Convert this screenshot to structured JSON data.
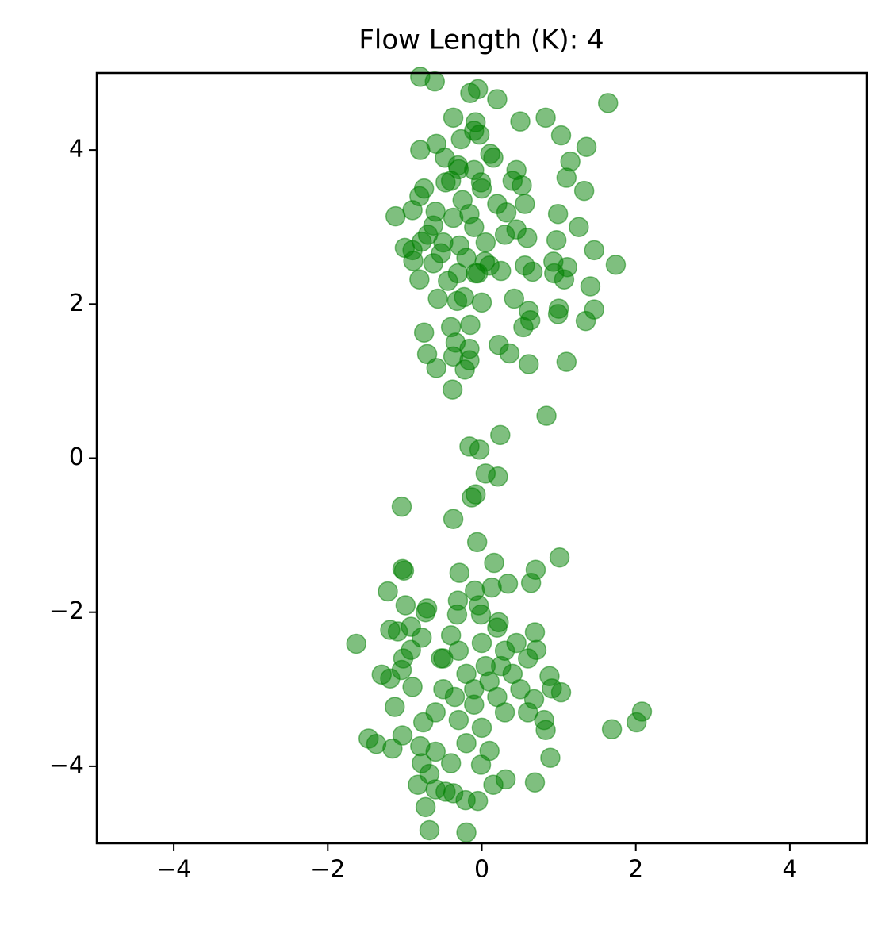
{
  "chart_data": {
    "type": "scatter",
    "title": "Flow Length (K): 4",
    "color": "#008000",
    "alpha": 0.5,
    "xlim": [
      -5,
      5
    ],
    "ylim": [
      -5,
      5
    ],
    "xticks": [
      {
        "value": -4,
        "label": "−4"
      },
      {
        "value": -2,
        "label": "−2"
      },
      0,
      2,
      4
    ],
    "yticks": [
      {
        "value": -4,
        "label": "−4"
      },
      {
        "value": -2,
        "label": "−2"
      },
      0,
      2,
      4
    ],
    "grid": false,
    "x": [
      -0.8,
      -0.61,
      -0.05,
      -0.15,
      0.2,
      1.64,
      -0.37,
      0.5,
      0.83,
      -0.08,
      -0.1,
      -0.03,
      1.03,
      -0.59,
      -0.8,
      1.36,
      -0.27,
      0.11,
      -0.48,
      1.15,
      0.45,
      -0.31,
      1.1,
      -0.1,
      -0.75,
      0.52,
      1.33,
      -0.01,
      -0.47,
      -0.81,
      0.56,
      -0.9,
      -1.12,
      0.99,
      1.26,
      -0.37,
      -0.16,
      0.32,
      -0.63,
      0.45,
      0.59,
      -1.0,
      -0.78,
      -0.53,
      -0.29,
      0.97,
      1.46,
      1.74,
      0.04,
      0.56,
      0.93,
      1.11,
      0.66,
      -0.89,
      -0.63,
      -0.08,
      0.25,
      0.94,
      1.07,
      -0.81,
      -0.44,
      -0.31,
      1.41,
      -0.57,
      -0.32,
      0.0,
      0.42,
      -0.23,
      0.61,
      1.0,
      0.99,
      1.46,
      1.35,
      0.63,
      0.54,
      -0.4,
      -0.15,
      -0.75,
      0.22,
      -0.34,
      -0.16,
      -0.37,
      -0.71,
      0.36,
      -0.16,
      1.1,
      -0.59,
      -0.22,
      0.61,
      -0.38,
      0.84,
      -0.3,
      -0.7,
      -0.5,
      -0.2,
      0.1,
      -0.4,
      0.0,
      0.2,
      -0.6,
      -0.1,
      0.3,
      -0.9,
      0.15,
      -0.25,
      0.4,
      -0.05,
      0.05,
      -0.16,
      -0.03,
      0.24,
      0.05,
      0.21,
      -0.08,
      -0.13,
      -1.04,
      -0.37,
      -0.06,
      1.01,
      0.16,
      -1.03,
      -1.01,
      0.7,
      -0.29,
      0.34,
      0.64,
      0.13,
      -1.22,
      -0.09,
      -0.31,
      -0.04,
      -0.99,
      -0.73,
      -0.71,
      -0.32,
      -0.01,
      0.22,
      -0.92,
      -1.19,
      -1.63,
      -1.09,
      0.69,
      -0.78,
      -1.02,
      -0.92,
      -0.53,
      0.71,
      -1.3,
      -1.19,
      -1.04,
      -0.9,
      0.88,
      0.91,
      1.03,
      -1.13,
      0.68,
      0.6,
      0.81,
      0.83,
      2.01,
      2.08,
      1.69,
      -1.03,
      -1.47,
      -1.37,
      -1.16,
      -0.76,
      -0.8,
      -0.6,
      0.89,
      -0.78,
      -0.4,
      -0.68,
      -0.01,
      -0.83,
      -0.6,
      -0.47,
      -0.37,
      -0.21,
      -0.05,
      0.15,
      0.31,
      0.69,
      -0.73,
      -0.68,
      -0.2,
      -0.3,
      0.0,
      0.3,
      -0.2,
      0.1,
      0.4,
      -0.5,
      -0.1,
      0.2,
      0.5,
      -0.3,
      0.0,
      0.3,
      -0.5,
      0.6,
      -0.2,
      0.1,
      -0.4,
      0.2,
      0.45,
      -0.6,
      0.05,
      -0.1,
      0.25,
      -0.35
    ],
    "values": [
      4.95,
      4.89,
      4.79,
      4.74,
      4.66,
      4.61,
      4.42,
      4.37,
      4.42,
      4.36,
      4.25,
      4.2,
      4.19,
      4.08,
      4.0,
      4.04,
      4.14,
      3.95,
      3.9,
      3.85,
      3.74,
      3.8,
      3.64,
      3.74,
      3.5,
      3.54,
      3.47,
      3.58,
      3.58,
      3.4,
      3.3,
      3.22,
      3.14,
      3.17,
      3.0,
      3.12,
      3.17,
      3.19,
      3.02,
      2.97,
      2.86,
      2.73,
      2.81,
      2.66,
      2.76,
      2.83,
      2.7,
      2.51,
      2.55,
      2.5,
      2.55,
      2.48,
      2.42,
      2.56,
      2.53,
      2.4,
      2.43,
      2.4,
      2.32,
      2.32,
      2.3,
      2.4,
      2.23,
      2.07,
      2.04,
      2.02,
      2.07,
      2.09,
      1.91,
      1.94,
      1.87,
      1.93,
      1.78,
      1.79,
      1.7,
      1.7,
      1.73,
      1.63,
      1.47,
      1.5,
      1.42,
      1.32,
      1.35,
      1.36,
      1.27,
      1.25,
      1.17,
      1.15,
      1.22,
      0.89,
      0.55,
      3.75,
      2.9,
      2.8,
      2.6,
      2.5,
      3.6,
      3.5,
      3.3,
      3.2,
      3.0,
      2.9,
      2.7,
      3.9,
      3.35,
      3.6,
      2.4,
      2.8,
      0.15,
      0.11,
      0.3,
      -0.2,
      -0.24,
      -0.47,
      -0.51,
      -0.63,
      -0.79,
      -1.09,
      -1.29,
      -1.36,
      -1.44,
      -1.46,
      -1.45,
      -1.49,
      -1.63,
      -1.62,
      -1.68,
      -1.73,
      -1.72,
      -1.85,
      -1.91,
      -1.91,
      -2.0,
      -1.95,
      -2.03,
      -2.03,
      -2.13,
      -2.19,
      -2.23,
      -2.41,
      -2.25,
      -2.26,
      -2.33,
      -2.6,
      -2.49,
      -2.6,
      -2.49,
      -2.81,
      -2.86,
      -2.75,
      -2.97,
      -2.83,
      -2.99,
      -3.04,
      -3.23,
      -3.13,
      -3.3,
      -3.4,
      -3.53,
      -3.43,
      -3.29,
      -3.52,
      -3.6,
      -3.64,
      -3.71,
      -3.77,
      -3.43,
      -3.74,
      -3.81,
      -3.89,
      -3.96,
      -3.96,
      -4.1,
      -3.98,
      -4.24,
      -4.3,
      -4.33,
      -4.35,
      -4.44,
      -4.45,
      -4.24,
      -4.17,
      -4.21,
      -4.53,
      -4.83,
      -4.86,
      -2.5,
      -2.4,
      -2.5,
      -2.8,
      -2.9,
      -2.8,
      -3.0,
      -3.2,
      -3.1,
      -3.0,
      -3.4,
      -3.5,
      -3.3,
      -2.6,
      -2.6,
      -3.7,
      -3.8,
      -2.3,
      -2.2,
      -2.4,
      -3.3,
      -2.7,
      -3.0,
      -2.7,
      -3.1
    ]
  }
}
